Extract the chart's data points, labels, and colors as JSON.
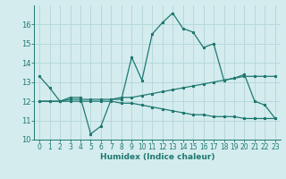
{
  "xlabel": "Humidex (Indice chaleur)",
  "bg_color": "#d4ecee",
  "grid_color": "#b8d8dc",
  "line_color": "#1e7870",
  "xlim": [
    -0.5,
    23.5
  ],
  "ylim": [
    10,
    17
  ],
  "x_ticks": [
    0,
    1,
    2,
    3,
    4,
    5,
    6,
    7,
    8,
    9,
    10,
    11,
    12,
    13,
    14,
    15,
    16,
    17,
    18,
    19,
    20,
    21,
    22,
    23
  ],
  "y_ticks": [
    10,
    11,
    12,
    13,
    14,
    15,
    16
  ],
  "line1_x": [
    0,
    1,
    2,
    3,
    4,
    5,
    6,
    7,
    8,
    9,
    10,
    11,
    12,
    13,
    14,
    15,
    16,
    17,
    18,
    19,
    20,
    21,
    22,
    23
  ],
  "line1_y": [
    13.3,
    12.7,
    12.0,
    12.2,
    12.2,
    10.3,
    10.7,
    12.1,
    12.1,
    14.3,
    13.1,
    15.5,
    16.1,
    16.6,
    15.8,
    15.6,
    14.8,
    15.0,
    13.1,
    13.2,
    13.4,
    12.0,
    11.8,
    11.1
  ],
  "line2_x": [
    0,
    1,
    2,
    3,
    4,
    5,
    6,
    7,
    8,
    9,
    10,
    11,
    12,
    13,
    14,
    15,
    16,
    17,
    18,
    19,
    20,
    21,
    22,
    23
  ],
  "line2_y": [
    12.0,
    12.0,
    12.0,
    12.1,
    12.1,
    12.1,
    12.1,
    12.1,
    12.2,
    12.2,
    12.3,
    12.4,
    12.5,
    12.6,
    12.7,
    12.8,
    12.9,
    13.0,
    13.1,
    13.2,
    13.3,
    13.3,
    13.3,
    13.3
  ],
  "line3_x": [
    0,
    1,
    2,
    3,
    4,
    5,
    6,
    7,
    8,
    9,
    10,
    11,
    12,
    13,
    14,
    15,
    16,
    17,
    18,
    19,
    20,
    21,
    22,
    23
  ],
  "line3_y": [
    12.0,
    12.0,
    12.0,
    12.0,
    12.0,
    12.0,
    12.0,
    12.0,
    11.9,
    11.9,
    11.8,
    11.7,
    11.6,
    11.5,
    11.4,
    11.3,
    11.3,
    11.2,
    11.2,
    11.2,
    11.1,
    11.1,
    11.1,
    11.1
  ],
  "tick_fontsize": 5.5,
  "xlabel_fontsize": 6.5,
  "marker_size": 2.0,
  "line_width": 0.9
}
